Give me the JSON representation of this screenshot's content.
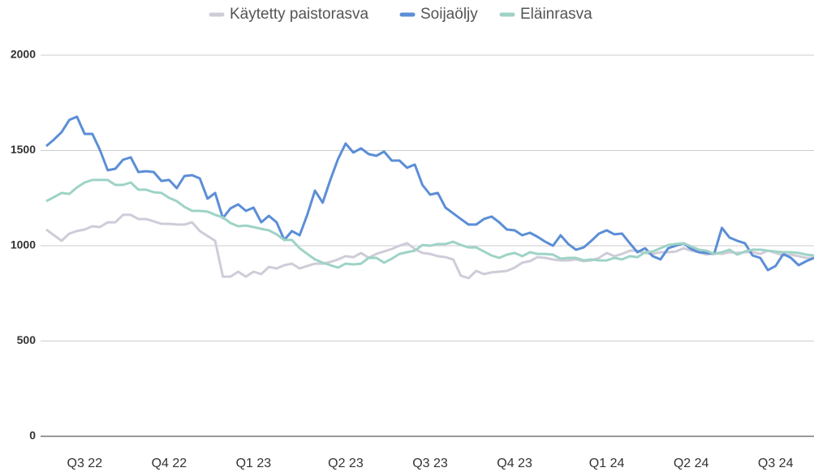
{
  "chart_data": {
    "type": "line",
    "categories": [
      null,
      null,
      null,
      null,
      null,
      "Q3 22",
      null,
      null,
      null,
      null,
      null,
      null,
      null,
      null,
      null,
      null,
      "Q4 22",
      null,
      null,
      null,
      null,
      null,
      null,
      null,
      null,
      null,
      null,
      "Q1 23",
      null,
      null,
      null,
      null,
      null,
      null,
      null,
      null,
      null,
      null,
      null,
      "Q2 23",
      null,
      null,
      null,
      null,
      null,
      null,
      null,
      null,
      null,
      null,
      "Q3 23",
      null,
      null,
      null,
      null,
      null,
      null,
      null,
      null,
      null,
      null,
      "Q4 23",
      null,
      null,
      null,
      null,
      null,
      null,
      null,
      null,
      null,
      null,
      null,
      "Q1 24",
      null,
      null,
      null,
      null,
      null,
      null,
      null,
      null,
      null,
      null,
      "Q2 24",
      null,
      null,
      null,
      null,
      null,
      null,
      null,
      null,
      null,
      null,
      "Q3 24",
      null,
      null,
      null,
      null,
      null
    ],
    "series": [
      {
        "name": "Käytetty paistorasva",
        "color": "#cfccd8",
        "values": [
          1085,
          1055,
          1026,
          1064,
          1077,
          1085,
          1102,
          1098,
          1123,
          1123,
          1162,
          1162,
          1140,
          1140,
          1128,
          1115,
          1115,
          1111,
          1111,
          1123,
          1077,
          1051,
          1026,
          838,
          838,
          864,
          838,
          864,
          851,
          889,
          881,
          898,
          906,
          881,
          894,
          906,
          906,
          915,
          928,
          945,
          940,
          962,
          936,
          957,
          970,
          983,
          1000,
          1013,
          983,
          962,
          957,
          945,
          940,
          928,
          843,
          830,
          868,
          851,
          860,
          864,
          868,
          885,
          911,
          919,
          940,
          936,
          928,
          923,
          923,
          928,
          919,
          923,
          936,
          962,
          945,
          957,
          974,
          974,
          962,
          957,
          966,
          966,
          970,
          987,
          974,
          966,
          953,
          962,
          957,
          966,
          962,
          966,
          966,
          957,
          974,
          962,
          949,
          953,
          945,
          936,
          936
        ]
      },
      {
        "name": "Soijaöljy",
        "color": "#5b8ed6",
        "values": [
          1523,
          1557,
          1596,
          1660,
          1677,
          1587,
          1587,
          1502,
          1396,
          1404,
          1451,
          1464,
          1387,
          1391,
          1387,
          1340,
          1345,
          1302,
          1366,
          1370,
          1353,
          1247,
          1277,
          1145,
          1196,
          1217,
          1183,
          1200,
          1123,
          1157,
          1123,
          1030,
          1077,
          1055,
          1162,
          1289,
          1226,
          1345,
          1455,
          1536,
          1489,
          1511,
          1481,
          1472,
          1494,
          1447,
          1447,
          1409,
          1426,
          1319,
          1268,
          1277,
          1200,
          1170,
          1140,
          1111,
          1111,
          1140,
          1153,
          1123,
          1085,
          1081,
          1055,
          1068,
          1047,
          1021,
          1000,
          1055,
          1009,
          979,
          991,
          1026,
          1064,
          1081,
          1060,
          1064,
          1013,
          966,
          987,
          945,
          928,
          987,
          1000,
          1013,
          983,
          966,
          962,
          957,
          1094,
          1043,
          1026,
          1013,
          949,
          936,
          872,
          894,
          957,
          936,
          898,
          919,
          936
        ]
      },
      {
        "name": "Eläinrasva",
        "color": "#9ed3c6",
        "values": [
          1234,
          1255,
          1277,
          1272,
          1306,
          1332,
          1345,
          1345,
          1345,
          1319,
          1319,
          1332,
          1294,
          1294,
          1281,
          1277,
          1251,
          1234,
          1204,
          1183,
          1183,
          1179,
          1162,
          1149,
          1119,
          1102,
          1106,
          1098,
          1089,
          1081,
          1060,
          1030,
          1030,
          987,
          957,
          928,
          911,
          898,
          885,
          906,
          902,
          906,
          936,
          936,
          911,
          932,
          957,
          966,
          974,
          1004,
          1000,
          1009,
          1009,
          1021,
          1004,
          991,
          991,
          970,
          949,
          936,
          953,
          962,
          945,
          966,
          957,
          957,
          953,
          932,
          936,
          936,
          923,
          928,
          923,
          923,
          936,
          928,
          945,
          940,
          966,
          970,
          987,
          1004,
          1009,
          1013,
          996,
          979,
          974,
          957,
          966,
          979,
          953,
          970,
          979,
          979,
          974,
          970,
          966,
          966,
          962,
          953,
          949
        ]
      }
    ],
    "ylim": [
      0,
      2000
    ],
    "yticks": [
      0,
      500,
      1000,
      1500,
      2000
    ],
    "grid": true,
    "legend": "top"
  }
}
